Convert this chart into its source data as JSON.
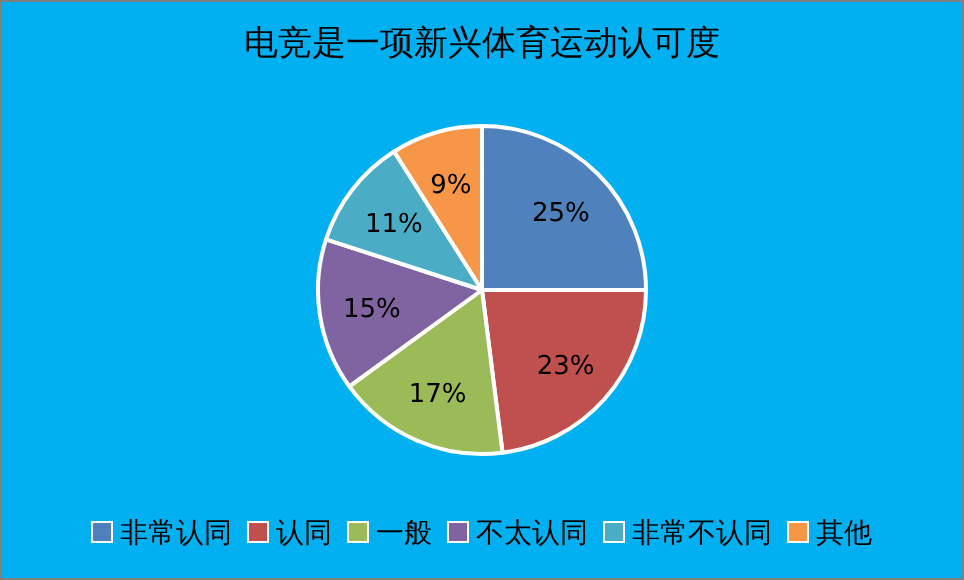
{
  "chart_data": {
    "type": "pie",
    "title": "电竞是一项新兴体育运动认可度",
    "categories": [
      "非常认同",
      "认同",
      "一般",
      "不太认同",
      "非常不认同",
      "其他"
    ],
    "values": [
      25,
      23,
      17,
      15,
      11,
      9
    ],
    "value_labels": [
      "25%",
      "23%",
      "17%",
      "15%",
      "11%",
      "9%"
    ],
    "colors": [
      "#4f81bd",
      "#c0504d",
      "#9bbb59",
      "#8064a2",
      "#4bacc6",
      "#f79646"
    ],
    "legend": "bottom"
  }
}
